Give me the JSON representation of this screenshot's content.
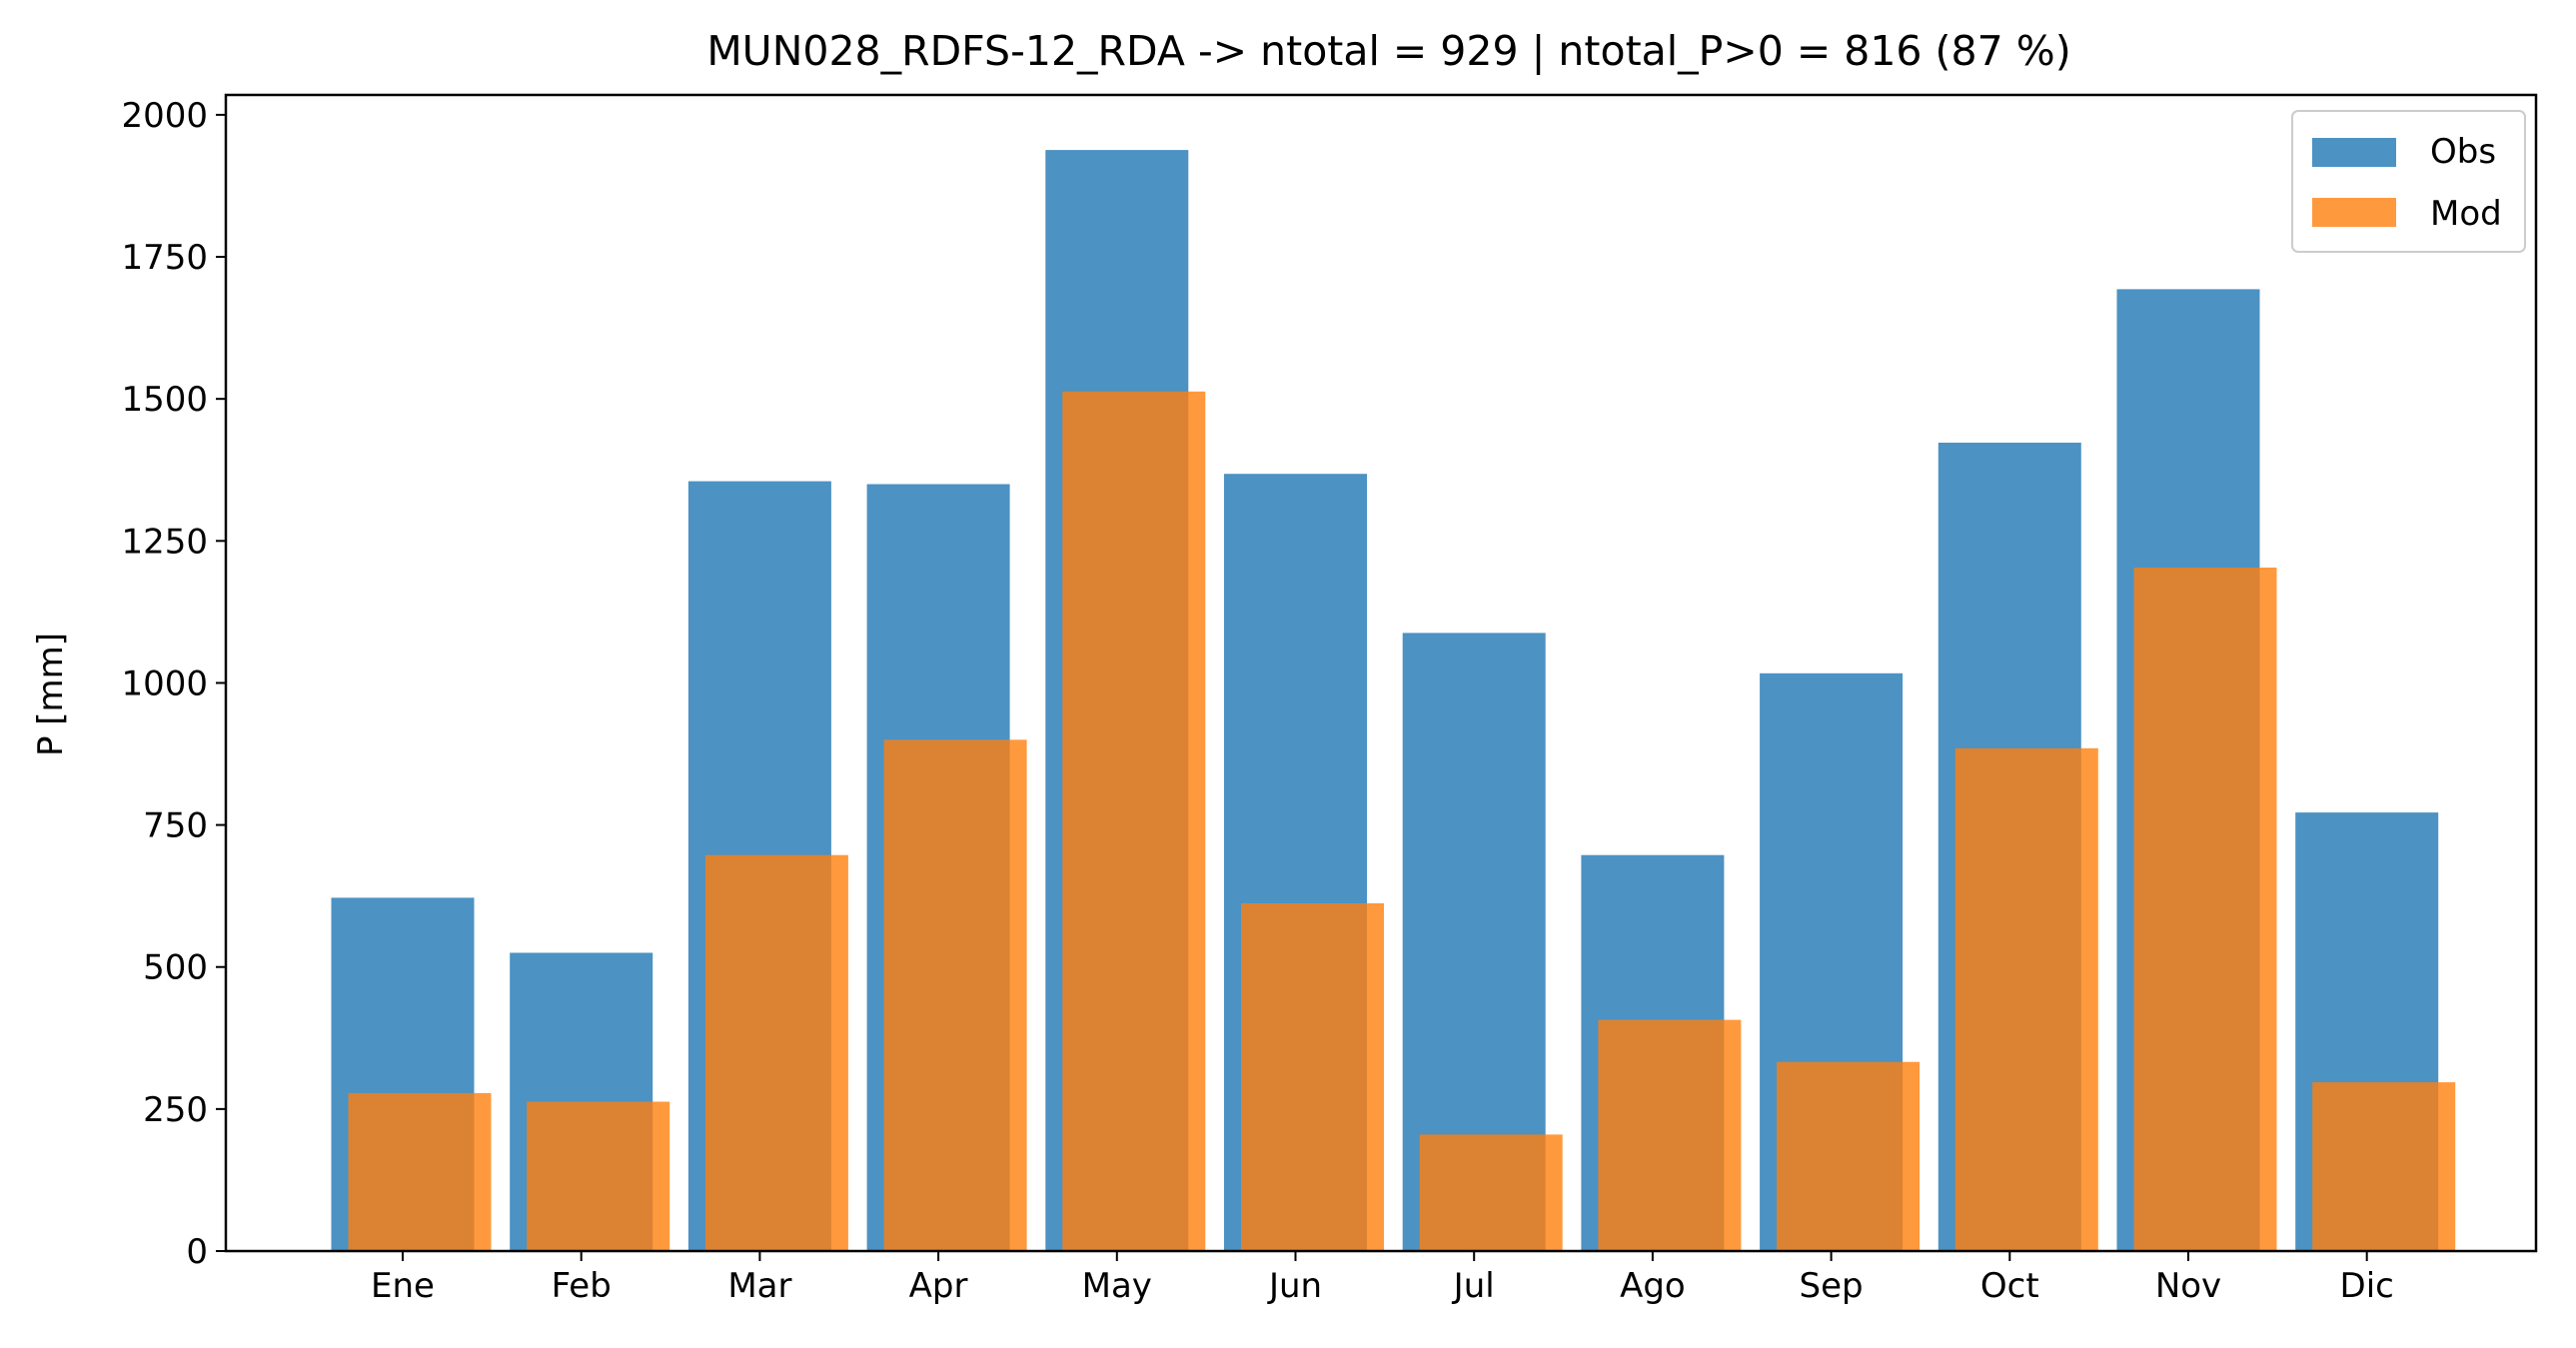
{
  "chart_data": {
    "type": "bar",
    "title": "MUN028_RDFS-12_RDA -> ntotal = 929 | ntotal_P>0 = 816 (87 %)",
    "xlabel": "",
    "ylabel": "P [mm]",
    "categories": [
      "Ene",
      "Feb",
      "Mar",
      "Apr",
      "May",
      "Jun",
      "Jul",
      "Ago",
      "Sep",
      "Oct",
      "Nov",
      "Dic"
    ],
    "series": [
      {
        "name": "Obs",
        "color": "#1f77b4",
        "values": [
          622,
          525,
          1355,
          1350,
          1938,
          1368,
          1088,
          697,
          1017,
          1423,
          1693,
          772
        ]
      },
      {
        "name": "Mod",
        "color": "#ff7f0e",
        "values": [
          278,
          263,
          697,
          900,
          1513,
          612,
          205,
          407,
          333,
          885,
          1203,
          297
        ]
      }
    ],
    "ylim": [
      0,
      2035
    ],
    "yticks": [
      "0",
      "250",
      "500",
      "750",
      "1000",
      "1250",
      "1500",
      "1750",
      "2000"
    ],
    "legend_position": "top-right",
    "grid": false
  }
}
